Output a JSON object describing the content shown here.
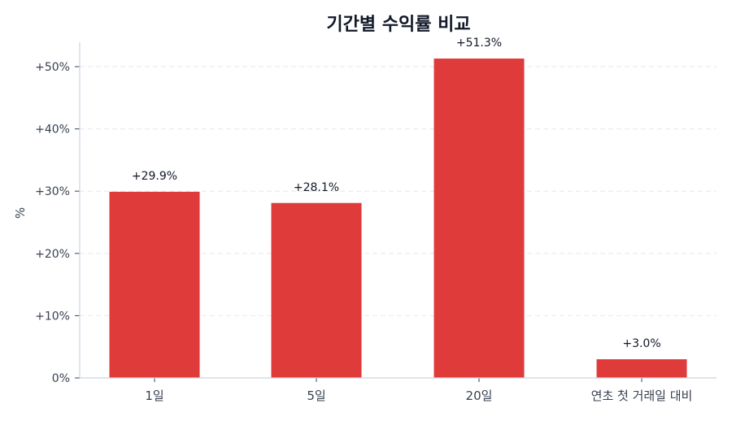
{
  "chart_data": {
    "type": "bar",
    "title": "기간별 수익률 비교",
    "xlabel": "",
    "ylabel": "%",
    "categories": [
      "1일",
      "5일",
      "20일",
      "연초 첫 거래일 대비"
    ],
    "values": [
      29.9,
      28.1,
      51.3,
      3.0
    ],
    "data_labels": [
      "+29.9%",
      "+28.1%",
      "+51.3%",
      "+3.0%"
    ],
    "ylim": [
      0,
      54
    ],
    "yticks": [
      0,
      10,
      20,
      30,
      40,
      50
    ],
    "ytick_labels": [
      "0%",
      "+10%",
      "+20%",
      "+30%",
      "+40%",
      "+50%"
    ],
    "grid": {
      "y": true,
      "style": "dashed"
    },
    "legend": null,
    "colors": {
      "bar": "#e03b3b",
      "title": "#111827",
      "axis": "#cbd5e1",
      "grid": "#e5e7eb",
      "tick_text": "#374151",
      "label_text": "#111827"
    }
  }
}
